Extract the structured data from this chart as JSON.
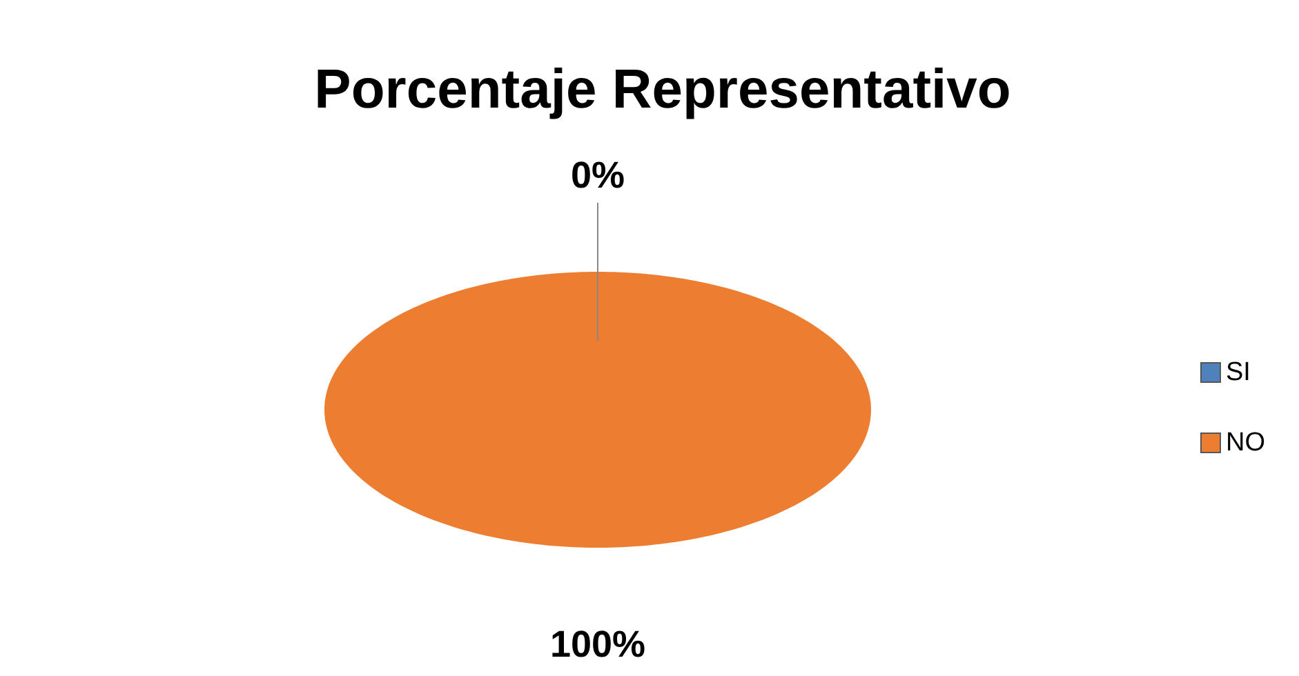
{
  "chart_data": {
    "type": "pie",
    "title": "Porcentaje Representativo",
    "categories": [
      "SI",
      "NO"
    ],
    "values": [
      0,
      100
    ],
    "value_labels": [
      "0%",
      "100%"
    ],
    "colors": [
      "#4f81bd",
      "#ed7d31"
    ],
    "legend": "right"
  }
}
